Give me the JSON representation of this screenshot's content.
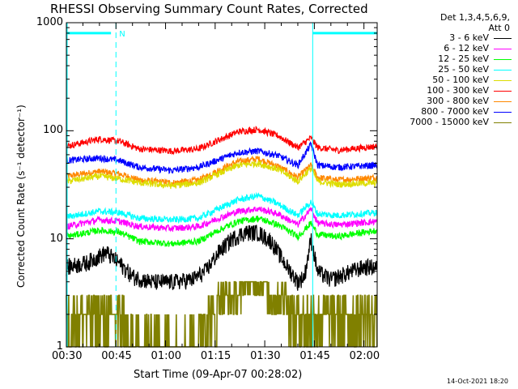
{
  "chart_data": {
    "type": "line",
    "title": "RHESSI Observing Summary Count Rates, Corrected",
    "xlabel": "Start Time (09-Apr-07 00:28:02)",
    "ylabel": "Corrected Count Rate (s⁻¹ detector⁻¹)",
    "yscale": "log",
    "ylim": [
      1,
      1000
    ],
    "xlim_minutes": [
      30,
      124
    ],
    "x_tick_labels": [
      "00:30",
      "00:45",
      "01:00",
      "01:15",
      "01:30",
      "01:45",
      "02:00"
    ],
    "x_tick_minutes": [
      30,
      45,
      60,
      75,
      90,
      105,
      120
    ],
    "y_tick_labels": [
      "1",
      "10",
      "100",
      "1000"
    ],
    "y_tick_values": [
      1,
      10,
      100,
      1000
    ],
    "legend_header": [
      "Det 1,3,4,5,6,9,",
      "Att 0"
    ],
    "series": [
      {
        "name": "3 - 6 keV",
        "color": "#000000",
        "x": [
          30,
          36,
          42,
          46,
          50,
          56,
          62,
          68,
          72,
          76,
          80,
          84,
          88,
          92,
          96,
          100,
          102,
          104,
          106,
          110,
          116,
          120,
          124
        ],
        "y": [
          5.5,
          6.0,
          7.5,
          6.0,
          4.5,
          4.0,
          4.0,
          4.2,
          5.0,
          7.5,
          10.0,
          11.5,
          11.5,
          9.5,
          6.0,
          4.0,
          4.5,
          10.0,
          5.0,
          4.2,
          5.0,
          5.5,
          5.5
        ]
      },
      {
        "name": "6 - 12 keV",
        "color": "#ff00ff",
        "x": [
          30,
          40,
          46,
          52,
          62,
          70,
          76,
          82,
          88,
          94,
          100,
          104,
          106,
          112,
          124
        ],
        "y": [
          13,
          15,
          14.5,
          13,
          12.5,
          13,
          15.5,
          18,
          19,
          17,
          13.5,
          19,
          14,
          13.5,
          14.5
        ]
      },
      {
        "name": "12 - 25 keV",
        "color": "#00ff00",
        "x": [
          30,
          40,
          46,
          52,
          62,
          70,
          76,
          82,
          88,
          94,
          100,
          104,
          106,
          112,
          124
        ],
        "y": [
          10.5,
          12,
          11.5,
          9.5,
          9,
          9.5,
          12,
          14.5,
          15.5,
          13.5,
          10.5,
          14,
          11,
          10.5,
          12
        ]
      },
      {
        "name": "25 - 50 keV",
        "color": "#00ffff",
        "x": [
          30,
          40,
          46,
          52,
          62,
          70,
          76,
          82,
          88,
          94,
          100,
          104,
          106,
          112,
          124
        ],
        "y": [
          16,
          18,
          17.5,
          15.5,
          15,
          15.5,
          19,
          23,
          25,
          21,
          16.5,
          22,
          17,
          16.5,
          17.5
        ]
      },
      {
        "name": "50 - 100 keV",
        "color": "#dddd00",
        "x": [
          30,
          40,
          46,
          52,
          62,
          70,
          76,
          82,
          88,
          94,
          100,
          104,
          106,
          112,
          124
        ],
        "y": [
          34,
          38,
          36,
          33,
          31,
          33,
          40,
          48,
          50,
          44,
          34,
          45,
          34,
          32,
          33
        ]
      },
      {
        "name": "100 - 300 keV",
        "color": "#ff0000",
        "x": [
          30,
          40,
          46,
          52,
          62,
          70,
          76,
          82,
          88,
          94,
          100,
          104,
          106,
          112,
          124
        ],
        "y": [
          72,
          84,
          80,
          68,
          65,
          68,
          82,
          98,
          103,
          90,
          70,
          86,
          70,
          66,
          72
        ]
      },
      {
        "name": "300 - 800 keV",
        "color": "#ff8800",
        "x": [
          30,
          40,
          46,
          52,
          62,
          70,
          76,
          82,
          88,
          94,
          100,
          104,
          106,
          112,
          124
        ],
        "y": [
          38,
          42,
          40,
          35,
          33,
          35,
          43,
          52,
          55,
          47,
          37,
          48,
          37,
          35,
          37
        ]
      },
      {
        "name": "800 - 7000 keV",
        "color": "#0000ff",
        "x": [
          30,
          40,
          46,
          52,
          62,
          70,
          76,
          82,
          88,
          94,
          100,
          104,
          106,
          112,
          124
        ],
        "y": [
          53,
          56,
          53,
          46,
          43,
          46,
          54,
          63,
          65,
          59,
          48,
          75,
          48,
          46,
          48
        ]
      },
      {
        "name": "7000 - 15000 keV",
        "color": "#808000",
        "x": [
          30,
          36,
          42,
          46,
          52,
          58,
          64,
          70,
          76,
          80,
          84,
          90,
          96,
          100,
          104,
          110,
          116,
          124
        ],
        "y": [
          1.8,
          2.0,
          2.3,
          1.8,
          1.0,
          1.0,
          1.0,
          1.4,
          2.6,
          3.2,
          3.6,
          3.6,
          2.8,
          1.8,
          2.5,
          1.8,
          1.6,
          1.8
        ]
      }
    ],
    "annotations": {
      "flag_bar_color": "#00ffff",
      "flag_bar_minutes": [
        [
          30,
          43.5
        ],
        [
          104.5,
          124
        ]
      ],
      "flag_bar_letter": "N",
      "dashed_verticals_minutes": [
        45,
        124
      ],
      "solid_verticals_minutes": [
        104.5
      ],
      "flag_bar_level": 800
    }
  },
  "timestamp": "14-Oct-2021 18:20"
}
